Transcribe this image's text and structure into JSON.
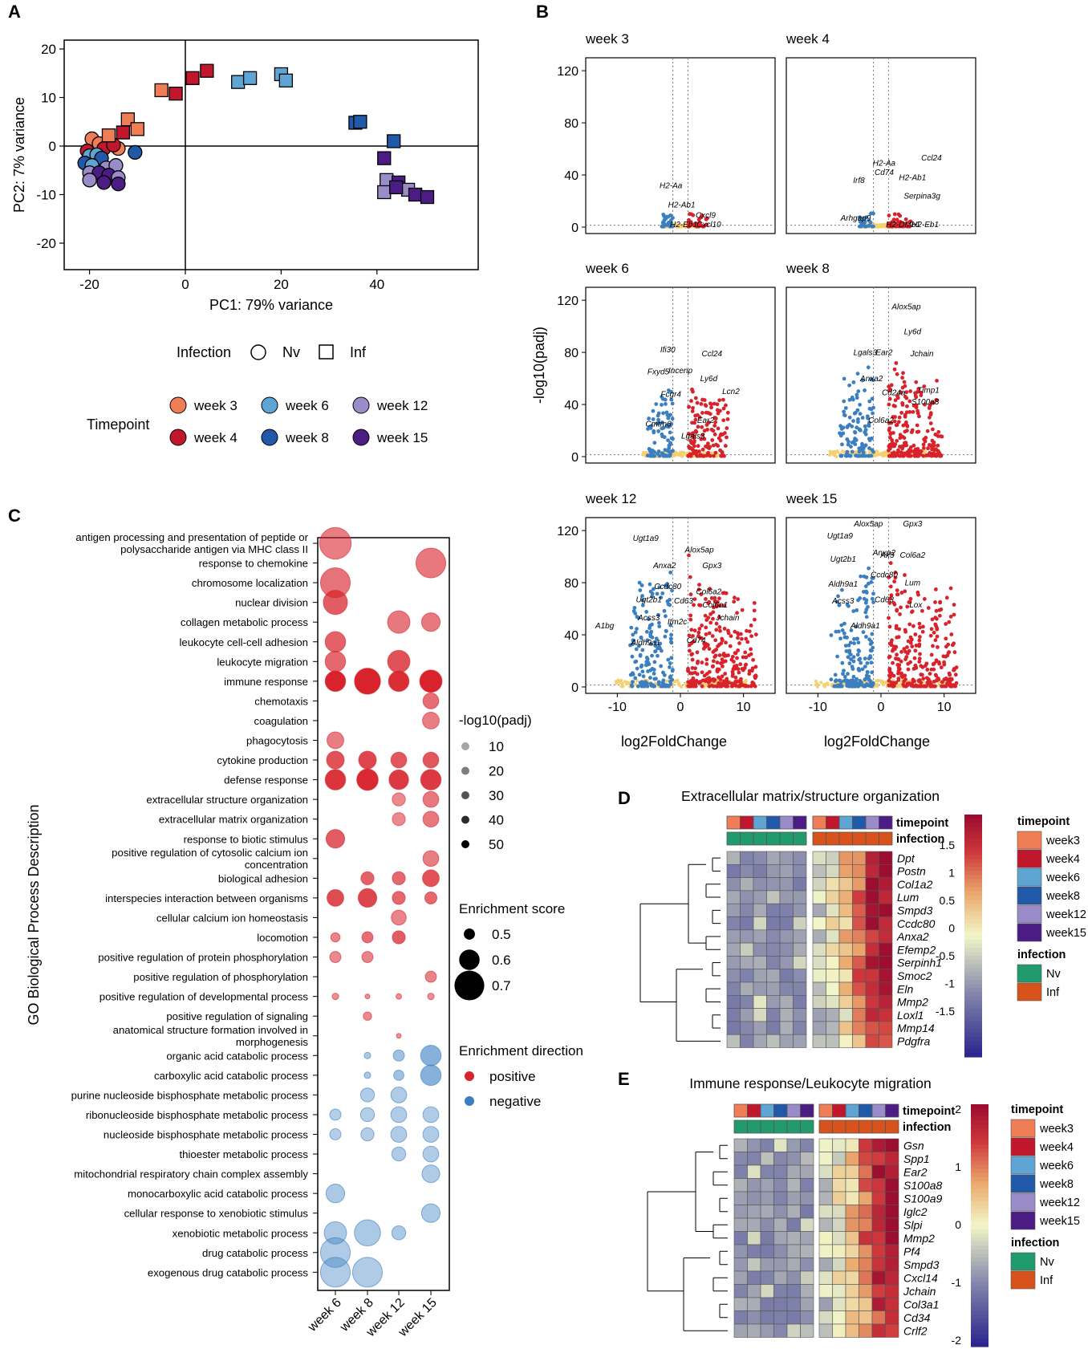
{
  "panel_letters": {
    "a": "A",
    "b": "B",
    "c": "C",
    "d": "D",
    "e": "E"
  },
  "pca": {
    "xlabel": "PC1: 79% variance",
    "ylabel": "PC2: 7% variance",
    "xticks": [
      "-20",
      "0",
      "20",
      "40"
    ],
    "yticks": [
      "20",
      "10",
      "0",
      "-10",
      "-20"
    ],
    "legend": {
      "infection_title": "Infection",
      "nv": "Nv",
      "inf": "Inf",
      "timepoint_title": "Timepoint",
      "weeks": [
        "week 3",
        "week 4",
        "week 6",
        "week 8",
        "week 12",
        "week 15"
      ]
    },
    "colors": {
      "w3": "#ef7d55",
      "w4": "#c0172d",
      "w6": "#5ea5d4",
      "w8": "#2059a7",
      "w12": "#9a8cc8",
      "w15": "#4b1c84"
    },
    "points": [
      {
        "x": -19.5,
        "y": 1.5,
        "w": "w3",
        "s": "c"
      },
      {
        "x": -18,
        "y": 0.5,
        "w": "w3",
        "s": "c"
      },
      {
        "x": -14,
        "y": -0.5,
        "w": "w3",
        "s": "c"
      },
      {
        "x": -17,
        "y": -0.5,
        "w": "w4",
        "s": "c"
      },
      {
        "x": -15,
        "y": 0.2,
        "w": "w4",
        "s": "c"
      },
      {
        "x": -20.5,
        "y": -1,
        "w": "w4",
        "s": "c"
      },
      {
        "x": -20,
        "y": -2,
        "w": "w6",
        "s": "c"
      },
      {
        "x": -18.5,
        "y": -1.8,
        "w": "w6",
        "s": "c"
      },
      {
        "x": -10.5,
        "y": -1.3,
        "w": "w8",
        "s": "c"
      },
      {
        "x": -21,
        "y": -3.5,
        "w": "w8",
        "s": "c"
      },
      {
        "x": -17.5,
        "y": -2.5,
        "w": "w8",
        "s": "c"
      },
      {
        "x": -19.5,
        "y": -4,
        "w": "w6",
        "s": "c"
      },
      {
        "x": -20,
        "y": -5.5,
        "w": "w12",
        "s": "c"
      },
      {
        "x": -16.5,
        "y": -4.5,
        "w": "w12",
        "s": "c"
      },
      {
        "x": -14.5,
        "y": -4,
        "w": "w12",
        "s": "c"
      },
      {
        "x": -18,
        "y": -5.5,
        "w": "w15",
        "s": "c"
      },
      {
        "x": -16,
        "y": -6,
        "w": "w15",
        "s": "c"
      },
      {
        "x": -14,
        "y": -6.5,
        "w": "w12",
        "s": "c"
      },
      {
        "x": -20,
        "y": -7,
        "w": "w12",
        "s": "c"
      },
      {
        "x": -17,
        "y": -7.5,
        "w": "w15",
        "s": "c"
      },
      {
        "x": -14,
        "y": -7.8,
        "w": "w15",
        "s": "c"
      },
      {
        "x": -16,
        "y": 2.2,
        "w": "w3",
        "s": "s"
      },
      {
        "x": -12,
        "y": 5.5,
        "w": "w3",
        "s": "s"
      },
      {
        "x": -10,
        "y": 3.5,
        "w": "w3",
        "s": "s"
      },
      {
        "x": -13,
        "y": 2.8,
        "w": "w4",
        "s": "s"
      },
      {
        "x": -5,
        "y": 11.5,
        "w": "w3",
        "s": "s"
      },
      {
        "x": -2,
        "y": 10.8,
        "w": "w4",
        "s": "s"
      },
      {
        "x": 1.5,
        "y": 14,
        "w": "w4",
        "s": "s"
      },
      {
        "x": 4.5,
        "y": 15.5,
        "w": "w4",
        "s": "s"
      },
      {
        "x": 11,
        "y": 13.2,
        "w": "w6",
        "s": "s"
      },
      {
        "x": 13.5,
        "y": 14,
        "w": "w6",
        "s": "s"
      },
      {
        "x": 20,
        "y": 14.8,
        "w": "w6",
        "s": "s"
      },
      {
        "x": 21,
        "y": 13.5,
        "w": "w6",
        "s": "s"
      },
      {
        "x": 35.5,
        "y": 4.8,
        "w": "w8",
        "s": "s"
      },
      {
        "x": 36.5,
        "y": 5,
        "w": "w8",
        "s": "s"
      },
      {
        "x": 43.5,
        "y": 1,
        "w": "w8",
        "s": "s"
      },
      {
        "x": 41.5,
        "y": -2.5,
        "w": "w15",
        "s": "s"
      },
      {
        "x": 42,
        "y": -7,
        "w": "w12",
        "s": "s"
      },
      {
        "x": 41.5,
        "y": -9.5,
        "w": "w12",
        "s": "s"
      },
      {
        "x": 44.5,
        "y": -7.5,
        "w": "w15",
        "s": "s"
      },
      {
        "x": 46.5,
        "y": -9,
        "w": "w12",
        "s": "s"
      },
      {
        "x": 48,
        "y": -10,
        "w": "w15",
        "s": "s"
      },
      {
        "x": 50.5,
        "y": -10.5,
        "w": "w15",
        "s": "s"
      },
      {
        "x": 44,
        "y": -8.5,
        "w": "w15",
        "s": "s"
      }
    ]
  },
  "volcano": {
    "ylabel": "-log10(padj)",
    "xlabel": "log2FoldChange",
    "yticks": [
      "120",
      "80",
      "40",
      "0"
    ],
    "xticks": [
      "-10",
      "0",
      "10"
    ],
    "panels": [
      {
        "title": "week 3",
        "labels": [
          [
            "H2-Aa"
          ],
          [
            "H2-Ab1"
          ],
          [
            "Cxcl9"
          ],
          [
            "H2-Eb1"
          ],
          [
            "Cxcl10"
          ]
        ]
      },
      {
        "title": "week 4",
        "labels": [
          [
            "H2-Aa"
          ],
          [
            "Ccl24"
          ],
          [
            "Cd74"
          ],
          [
            "H2-Ab1"
          ],
          [
            "Irf8"
          ],
          [
            "Serpina3g"
          ],
          [
            "Arhgap9"
          ],
          [
            "H2-DMb1"
          ],
          [
            "H2-Eb1"
          ]
        ]
      },
      {
        "title": "week 6",
        "labels": [
          [
            "Ifi30"
          ],
          [
            "Ccl24"
          ],
          [
            "Fxyd5"
          ],
          [
            "Incenp"
          ],
          [
            "Ly6d"
          ],
          [
            "Fcgr4"
          ],
          [
            "Lcn2"
          ],
          [
            "Cmtm6"
          ],
          [
            "Ear2"
          ],
          [
            "Lgals3"
          ]
        ]
      },
      {
        "title": "week 8",
        "labels": [
          [
            "Alox5ap"
          ],
          [
            "Ly6d"
          ],
          [
            "Lgals3"
          ],
          [
            "Ear2"
          ],
          [
            "Jchain"
          ],
          [
            "Anxa2"
          ],
          [
            "Cd24a"
          ],
          [
            "Timp1"
          ],
          [
            "Col6a2"
          ],
          [
            "S100a8"
          ]
        ]
      },
      {
        "title": "week 12",
        "labels": [
          [
            "Ugt1a9"
          ],
          [
            "Alox5ap"
          ],
          [
            "Anxa2"
          ],
          [
            "Gpx3"
          ],
          [
            "Ccdc80"
          ],
          [
            "Col6a2"
          ],
          [
            "Ugt2b1"
          ],
          [
            "Cd63"
          ],
          [
            "Col6a1"
          ],
          [
            "Acss3"
          ],
          [
            "Jchain"
          ],
          [
            "A1bg"
          ],
          [
            "Itm2c"
          ],
          [
            "Aldh9a1"
          ],
          [
            "Cd74"
          ]
        ]
      },
      {
        "title": "week 15",
        "labels": [
          [
            "Alox5ap"
          ],
          [
            "Gpx3"
          ],
          [
            "Ugt1a9"
          ],
          [
            "Anxa2"
          ],
          [
            "Ugt2b1"
          ],
          [
            "Ak3"
          ],
          [
            "Col6a2"
          ],
          [
            "Ccdc80"
          ],
          [
            "Aldh9a1"
          ],
          [
            "Lum"
          ],
          [
            "Acss3"
          ],
          [
            "Cd63"
          ],
          [
            "Lox"
          ],
          [
            "Aldh9a1"
          ]
        ]
      }
    ]
  },
  "go": {
    "ylabel": "GO Biological Process Description",
    "weeks": [
      "week 6",
      "week 8",
      "week 12",
      "week 15"
    ],
    "terms": [
      [
        "antigen processing and presentation of peptide or",
        "polysaccharide antigen via MHC class II"
      ],
      [
        "response to chemokine"
      ],
      [
        "chromosome localization"
      ],
      [
        "nuclear division"
      ],
      [
        "collagen metabolic process"
      ],
      [
        "leukocyte cell-cell adhesion"
      ],
      [
        "leukocyte migration"
      ],
      [
        "immune response"
      ],
      [
        "chemotaxis"
      ],
      [
        "coagulation"
      ],
      [
        "phagocytosis"
      ],
      [
        "cytokine production"
      ],
      [
        "defense response"
      ],
      [
        "extracellular structure organization"
      ],
      [
        "extracellular matrix organization"
      ],
      [
        "response to biotic stimulus"
      ],
      [
        "positive regulation of cytosolic calcium ion",
        "concentration"
      ],
      [
        "biological adhesion"
      ],
      [
        "interspecies interaction between organisms"
      ],
      [
        "cellular calcium ion homeostasis"
      ],
      [
        "locomotion"
      ],
      [
        "positive regulation of protein phosphorylation"
      ],
      [
        "positive regulation of phosphorylation"
      ],
      [
        "positive regulation of developmental process"
      ],
      [
        "positive regulation of signaling"
      ],
      [
        "anatomical structure formation involved in",
        "morphogenesis"
      ],
      [
        "organic acid catabolic process"
      ],
      [
        "carboxylic acid catabolic process"
      ],
      [
        "purine nucleoside bisphosphate metabolic process"
      ],
      [
        "ribonucleoside bisphosphate metabolic process"
      ],
      [
        "nucleoside bisphosphate metabolic process"
      ],
      [
        "thioester metabolic process"
      ],
      [
        "mitochondrial respiratory chain complex assembly"
      ],
      [
        "monocarboxylic acid catabolic process"
      ],
      [
        "cellular response to xenobiotic stimulus"
      ],
      [
        "xenobiotic metabolic process"
      ],
      [
        "drug catabolic process"
      ],
      [
        "exogenous drug catabolic process"
      ]
    ],
    "dots": [
      [
        0,
        0,
        0.72,
        18,
        "p"
      ],
      [
        1,
        3,
        0.7,
        20,
        "p"
      ],
      [
        2,
        0,
        0.7,
        22,
        "p"
      ],
      [
        3,
        0,
        0.64,
        30,
        "p"
      ],
      [
        4,
        2,
        0.62,
        20,
        "p"
      ],
      [
        4,
        3,
        0.58,
        20,
        "p"
      ],
      [
        5,
        0,
        0.6,
        28,
        "p"
      ],
      [
        6,
        0,
        0.6,
        26,
        "p"
      ],
      [
        6,
        2,
        0.62,
        34,
        "p"
      ],
      [
        7,
        0,
        0.6,
        50,
        "p"
      ],
      [
        7,
        1,
        0.66,
        50,
        "p"
      ],
      [
        7,
        2,
        0.6,
        46,
        "p"
      ],
      [
        7,
        3,
        0.62,
        50,
        "p"
      ],
      [
        8,
        3,
        0.55,
        24,
        "p"
      ],
      [
        9,
        3,
        0.56,
        18,
        "p"
      ],
      [
        10,
        0,
        0.56,
        18,
        "p"
      ],
      [
        11,
        0,
        0.57,
        34,
        "p"
      ],
      [
        11,
        1,
        0.57,
        38,
        "p"
      ],
      [
        11,
        2,
        0.55,
        32,
        "p"
      ],
      [
        11,
        3,
        0.55,
        32,
        "p"
      ],
      [
        12,
        0,
        0.6,
        44,
        "p"
      ],
      [
        12,
        1,
        0.61,
        48,
        "p"
      ],
      [
        12,
        2,
        0.59,
        42,
        "p"
      ],
      [
        12,
        3,
        0.6,
        42,
        "p"
      ],
      [
        13,
        2,
        0.52,
        14,
        "p"
      ],
      [
        13,
        3,
        0.55,
        20,
        "p"
      ],
      [
        14,
        2,
        0.52,
        14,
        "p"
      ],
      [
        14,
        3,
        0.55,
        20,
        "p"
      ],
      [
        15,
        0,
        0.58,
        30,
        "p"
      ],
      [
        16,
        3,
        0.55,
        18,
        "p"
      ],
      [
        17,
        1,
        0.52,
        28,
        "p"
      ],
      [
        17,
        2,
        0.52,
        26,
        "p"
      ],
      [
        17,
        3,
        0.56,
        34,
        "p"
      ],
      [
        18,
        0,
        0.56,
        36,
        "p"
      ],
      [
        18,
        1,
        0.58,
        38,
        "p"
      ],
      [
        18,
        2,
        0.52,
        26,
        "p"
      ],
      [
        18,
        3,
        0.51,
        26,
        "p"
      ],
      [
        19,
        2,
        0.54,
        16,
        "p"
      ],
      [
        20,
        0,
        0.48,
        16,
        "p"
      ],
      [
        20,
        1,
        0.5,
        24,
        "p"
      ],
      [
        20,
        2,
        0.52,
        30,
        "p"
      ],
      [
        21,
        0,
        0.5,
        14,
        "p"
      ],
      [
        21,
        1,
        0.5,
        16,
        "p"
      ],
      [
        22,
        3,
        0.5,
        16,
        "p"
      ],
      [
        23,
        0,
        0.45,
        12,
        "p"
      ],
      [
        23,
        1,
        0.43,
        12,
        "p"
      ],
      [
        23,
        2,
        0.44,
        12,
        "p"
      ],
      [
        23,
        3,
        0.45,
        12,
        "p"
      ],
      [
        24,
        1,
        0.47,
        14,
        "p"
      ],
      [
        25,
        2,
        0.4,
        12,
        "p"
      ],
      [
        26,
        1,
        0.45,
        14,
        "n"
      ],
      [
        26,
        2,
        0.5,
        20,
        "n"
      ],
      [
        26,
        3,
        0.6,
        32,
        "n"
      ],
      [
        27,
        1,
        0.45,
        14,
        "n"
      ],
      [
        27,
        2,
        0.49,
        20,
        "n"
      ],
      [
        27,
        3,
        0.6,
        32,
        "n"
      ],
      [
        28,
        1,
        0.53,
        12,
        "n"
      ],
      [
        28,
        2,
        0.55,
        12,
        "n"
      ],
      [
        29,
        0,
        0.5,
        10,
        "n"
      ],
      [
        29,
        1,
        0.53,
        10,
        "n"
      ],
      [
        29,
        2,
        0.55,
        12,
        "n"
      ],
      [
        29,
        3,
        0.55,
        12,
        "n"
      ],
      [
        30,
        0,
        0.5,
        10,
        "n"
      ],
      [
        30,
        1,
        0.52,
        10,
        "n"
      ],
      [
        30,
        2,
        0.55,
        12,
        "n"
      ],
      [
        30,
        3,
        0.55,
        12,
        "n"
      ],
      [
        31,
        2,
        0.53,
        12,
        "n"
      ],
      [
        31,
        3,
        0.55,
        12,
        "n"
      ],
      [
        32,
        3,
        0.57,
        12,
        "n"
      ],
      [
        33,
        0,
        0.58,
        14,
        "n"
      ],
      [
        34,
        3,
        0.58,
        14,
        "n"
      ],
      [
        35,
        0,
        0.62,
        14,
        "n"
      ],
      [
        35,
        1,
        0.66,
        14,
        "n"
      ],
      [
        35,
        2,
        0.53,
        14,
        "n"
      ],
      [
        36,
        0,
        0.7,
        12,
        "n"
      ],
      [
        37,
        0,
        0.7,
        12,
        "n"
      ],
      [
        37,
        1,
        0.7,
        12,
        "n"
      ]
    ],
    "legend_padj_title": "-log10(padj)",
    "legend_padj": [
      "10",
      "20",
      "30",
      "40",
      "50"
    ],
    "legend_enrich_title": "Enrichment score",
    "legend_enrich": [
      "0.5",
      "0.6",
      "0.7"
    ],
    "legend_dir_title": "Enrichment direction",
    "legend_dir": [
      "positive",
      "negative"
    ],
    "colors": {
      "positive": "#d8232c",
      "negative": "#3b7fc0"
    }
  },
  "heatD": {
    "title": "Extracellular matrix/structure organization",
    "genes": [
      "Dpt",
      "Postn",
      "Col1a2",
      "Lum",
      "Smpd3",
      "Ccdc80",
      "Anxa2",
      "Efemp2",
      "Serpinh1",
      "Smoc2",
      "Eln",
      "Mmp2",
      "Loxl1",
      "Mmp14",
      "Pdgfra"
    ],
    "scale": [
      "1.5",
      "1",
      "0.5",
      "0",
      "-0.5",
      "-1",
      "-1.5"
    ],
    "tp_label": "timepoint",
    "inf_label": "infection",
    "legend_tp_title": "timepoint",
    "legend_tp": [
      "week3",
      "week4",
      "week6",
      "week8",
      "week12",
      "week15"
    ],
    "legend_inf_title": "infection",
    "legend_inf": [
      "Nv",
      "Inf"
    ]
  },
  "heatE": {
    "title": "Immune response/Leukocyte migration",
    "genes": [
      "Gsn",
      "Spp1",
      "Ear2",
      "S100a8",
      "S100a9",
      "Iglc2",
      "Slpi",
      "Mmp2",
      "Pf4",
      "Smpd3",
      "Cxcl14",
      "Jchain",
      "Col3a1",
      "Cd34",
      "Crlf2"
    ],
    "scale": [
      "2",
      "1",
      "0",
      "-1",
      "-2"
    ],
    "tp_label": "timepoint",
    "inf_label": "infection",
    "legend_tp_title": "timepoint",
    "legend_tp": [
      "week3",
      "week4",
      "week6",
      "week8",
      "week12",
      "week15"
    ],
    "legend_inf_title": "infection",
    "legend_inf": [
      "Nv",
      "Inf"
    ]
  },
  "palette": {
    "nv": "#219a6e",
    "inf": "#d8531b"
  }
}
